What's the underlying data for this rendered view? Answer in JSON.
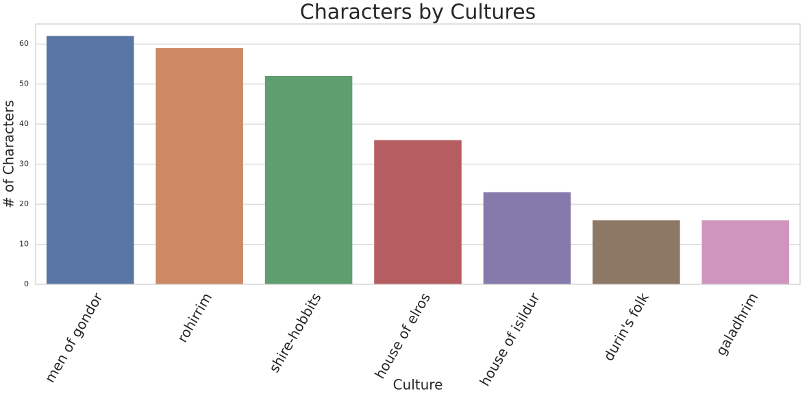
{
  "chart_data": {
    "type": "bar",
    "title": "Characters by Cultures",
    "x_label": "Culture",
    "y_label": "# of Characters",
    "categories": [
      "men of gondor",
      "rohirrim",
      "shire-hobbits",
      "house of elros",
      "house of isildur",
      "durin's folk",
      "galadhrim"
    ],
    "values": [
      62,
      59,
      52,
      36,
      23,
      16,
      16
    ],
    "colors": [
      "#5975a4",
      "#cc8963",
      "#5f9e6e",
      "#b55d60",
      "#857aab",
      "#8d7866",
      "#d095bf"
    ],
    "ylim": [
      0,
      65
    ],
    "yticks": [
      0,
      10,
      20,
      30,
      40,
      50,
      60
    ],
    "grid": true
  }
}
